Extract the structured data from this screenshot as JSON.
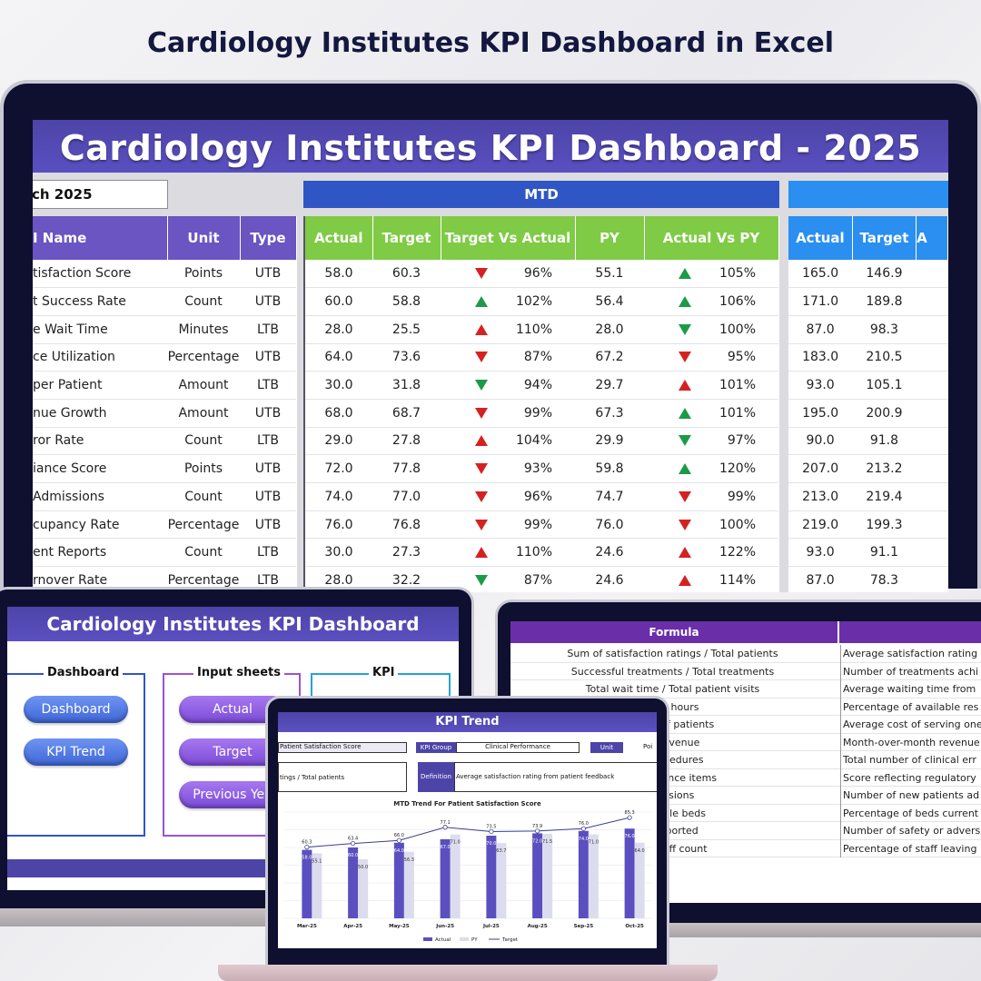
{
  "promo_title": "Cardiology Institutes KPI Dashboard in Excel",
  "main": {
    "banner": "Cardiology Institutes KPI Dashboard - 2025",
    "month_value": "ch 2025",
    "mtd_label": "MTD",
    "left_headers": [
      "I Name",
      "Unit",
      "Type"
    ],
    "mtd_headers": [
      "Actual",
      "Target",
      "Target Vs Actual",
      "PY",
      "Actual Vs PY"
    ],
    "ytd_headers": [
      "Actual",
      "Target",
      "A"
    ],
    "rows": [
      {
        "name": "tisfaction Score",
        "unit": "Points",
        "type": "UTB",
        "actual": "58.0",
        "target": "60.3",
        "tva_dir": "down-red",
        "tva": "96%",
        "py": "55.1",
        "avp_dir": "up-green",
        "avp": "105%",
        "y_actual": "165.0",
        "y_target": "146.9"
      },
      {
        "name": "t Success Rate",
        "unit": "Count",
        "type": "UTB",
        "actual": "60.0",
        "target": "58.8",
        "tva_dir": "up-green",
        "tva": "102%",
        "py": "56.4",
        "avp_dir": "up-green",
        "avp": "106%",
        "y_actual": "171.0",
        "y_target": "189.8"
      },
      {
        "name": "e Wait Time",
        "unit": "Minutes",
        "type": "LTB",
        "actual": "28.0",
        "target": "25.5",
        "tva_dir": "up-red",
        "tva": "110%",
        "py": "28.0",
        "avp_dir": "down-green",
        "avp": "100%",
        "y_actual": "87.0",
        "y_target": "98.3"
      },
      {
        "name": "ce Utilization",
        "unit": "Percentage",
        "type": "UTB",
        "actual": "64.0",
        "target": "73.6",
        "tva_dir": "down-red",
        "tva": "87%",
        "py": "67.2",
        "avp_dir": "down-red",
        "avp": "95%",
        "y_actual": "183.0",
        "y_target": "210.5"
      },
      {
        "name": "per Patient",
        "unit": "Amount",
        "type": "LTB",
        "actual": "30.0",
        "target": "31.8",
        "tva_dir": "down-green",
        "tva": "94%",
        "py": "29.7",
        "avp_dir": "up-red",
        "avp": "101%",
        "y_actual": "93.0",
        "y_target": "105.1"
      },
      {
        "name": "nue Growth",
        "unit": "Amount",
        "type": "UTB",
        "actual": "68.0",
        "target": "68.7",
        "tva_dir": "down-red",
        "tva": "99%",
        "py": "67.3",
        "avp_dir": "up-green",
        "avp": "101%",
        "y_actual": "195.0",
        "y_target": "200.9"
      },
      {
        "name": "ror Rate",
        "unit": "Count",
        "type": "LTB",
        "actual": "29.0",
        "target": "27.8",
        "tva_dir": "up-red",
        "tva": "104%",
        "py": "29.9",
        "avp_dir": "down-green",
        "avp": "97%",
        "y_actual": "90.0",
        "y_target": "91.8"
      },
      {
        "name": "iance Score",
        "unit": "Points",
        "type": "UTB",
        "actual": "72.0",
        "target": "77.8",
        "tva_dir": "down-red",
        "tva": "93%",
        "py": "59.8",
        "avp_dir": "up-green",
        "avp": "120%",
        "y_actual": "207.0",
        "y_target": "213.2"
      },
      {
        "name": "Admissions",
        "unit": "Count",
        "type": "UTB",
        "actual": "74.0",
        "target": "77.0",
        "tva_dir": "down-red",
        "tva": "96%",
        "py": "74.7",
        "avp_dir": "down-red",
        "avp": "99%",
        "y_actual": "213.0",
        "y_target": "219.4"
      },
      {
        "name": "cupancy Rate",
        "unit": "Percentage",
        "type": "UTB",
        "actual": "76.0",
        "target": "76.8",
        "tva_dir": "down-red",
        "tva": "99%",
        "py": "76.0",
        "avp_dir": "down-red",
        "avp": "100%",
        "y_actual": "219.0",
        "y_target": "199.3"
      },
      {
        "name": "ent Reports",
        "unit": "Count",
        "type": "LTB",
        "actual": "30.0",
        "target": "27.3",
        "tva_dir": "up-red",
        "tva": "110%",
        "py": "24.6",
        "avp_dir": "up-red",
        "avp": "122%",
        "y_actual": "93.0",
        "y_target": "91.1"
      },
      {
        "name": "rnover Rate",
        "unit": "Percentage",
        "type": "LTB",
        "actual": "28.0",
        "target": "32.2",
        "tva_dir": "down-green",
        "tva": "87%",
        "py": "24.6",
        "avp_dir": "up-red",
        "avp": "114%",
        "y_actual": "87.0",
        "y_target": "78.3"
      }
    ]
  },
  "left_screen": {
    "banner": "Cardiology Institutes KPI Dashboard",
    "group_dashboard": "Dashboard",
    "group_input": "Input sheets",
    "group_kpi": "KPI",
    "btn_dashboard": "Dashboard",
    "btn_kpi_trend": "KPI Trend",
    "btn_actual": "Actual",
    "btn_target": "Target",
    "btn_previous": "Previous Yea"
  },
  "right_screen": {
    "formula_header": "Formula",
    "rows": [
      {
        "formula": "Sum of satisfaction ratings / Total patients",
        "definition": "Average satisfaction rating"
      },
      {
        "formula": "Successful treatments / Total treatments",
        "definition": "Number of treatments achi"
      },
      {
        "formula": "Total wait time / Total patient visits",
        "definition": "Average waiting time from"
      },
      {
        "formula": "able hours",
        "definition": "Percentage of available res"
      },
      {
        "formula": "mber of patients",
        "definition": "Average cost of serving one"
      },
      {
        "formula": "or revenue",
        "definition": "Month-over-month revenue"
      },
      {
        "formula": "l procedures",
        "definition": "Total number of clinical err"
      },
      {
        "formula": "compliance items",
        "definition": "Score reflecting regulatory"
      },
      {
        "formula": "missions",
        "definition": "Number of new patients ad"
      },
      {
        "formula": "vailable beds",
        "definition": "Percentage of beds current"
      },
      {
        "formula": "s reported",
        "definition": "Number of safety or advers"
      },
      {
        "formula": "ge staff count",
        "definition": "Percentage of staff leaving"
      }
    ]
  },
  "center_screen": {
    "banner": "KPI Trend",
    "kpi_name": "Patient Satisfaction Score",
    "kpi_group_label": "KPI Group",
    "kpi_group_value": "Clinical Performance",
    "unit_label": "Unit",
    "unit_value": "Poi",
    "formula_text": "tings / Total patients",
    "definition_label": "Definition",
    "definition_text": "Average satisfaction rating from patient feedback",
    "chart_title": "MTD Trend For Patient Satisfaction Score"
  },
  "chart_data": {
    "type": "bar",
    "title": "MTD Trend For Patient Satisfaction Score",
    "categories": [
      "Mar-25",
      "Apr-25",
      "May-25",
      "Jun-25",
      "Jul-25",
      "Aug-25",
      "Sep-25",
      "Oct-25"
    ],
    "series": [
      {
        "name": "Actual",
        "kind": "bar",
        "color": "#5b4fc0",
        "values": [
          58.0,
          60.0,
          64.0,
          67.0,
          70.0,
          72.0,
          74.0,
          76.0
        ]
      },
      {
        "name": "PY",
        "kind": "bar",
        "color": "#dcdcef",
        "values": [
          55.1,
          50.0,
          56.3,
          71.0,
          63.7,
          71.5,
          71.0,
          64.0
        ]
      },
      {
        "name": "Target",
        "kind": "line",
        "color": "#3b3f8f",
        "values": [
          60.3,
          63.4,
          66.0,
          77.1,
          73.5,
          73.9,
          76.0,
          85.3
        ]
      }
    ],
    "ylim": [
      0,
      90
    ],
    "grid": true,
    "legend": "bottom"
  },
  "colors": {
    "banner": "#4d44a8",
    "mtd": "#2f56c4",
    "ytd": "#2a8ff0",
    "mtd_headers": "#7fcb45",
    "left_headers": "#6a55c3",
    "up": "#1d9a48",
    "down": "#d42222"
  }
}
